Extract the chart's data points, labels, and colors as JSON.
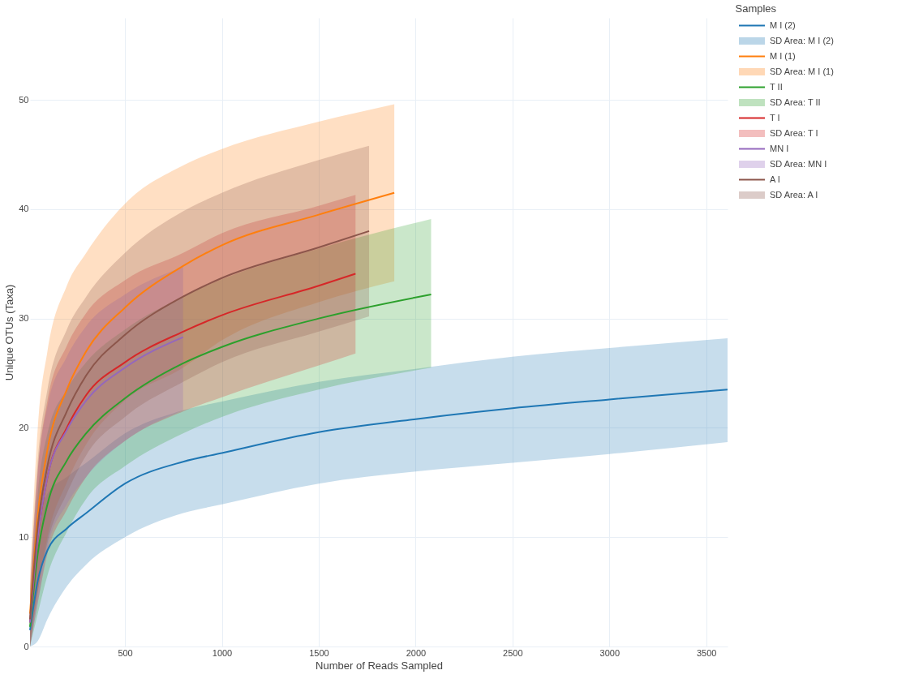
{
  "chart_data": {
    "type": "line",
    "xlabel": "Number of Reads Sampled",
    "ylabel": "Unique OTUs (Taxa)",
    "legend_title": "Samples",
    "legend": "top right",
    "grid": true,
    "xlim": [
      10,
      3610
    ],
    "xticks": [
      500,
      1000,
      1500,
      2000,
      2500,
      3000,
      3500
    ],
    "ylim": [
      0,
      57.5
    ],
    "yticks": [
      0,
      10,
      20,
      30,
      40,
      50
    ],
    "series": [
      {
        "name": "M I (2)",
        "type": "line",
        "color": "#1f77b4",
        "x": [
          10,
          50,
          100,
          200,
          300,
          500,
          800,
          1000,
          1500,
          2000,
          2500,
          3000,
          3610
        ],
        "values": [
          1.5,
          6,
          8.8,
          10.8,
          12.2,
          14.9,
          16.9,
          17.7,
          19.6,
          20.8,
          21.8,
          22.6,
          23.5
        ],
        "lower": [
          0,
          0.5,
          2.5,
          5.5,
          7.5,
          10,
          12.2,
          13,
          14.9,
          16,
          16.8,
          17.6,
          18.7
        ],
        "upper": [
          3,
          11,
          14,
          15.5,
          16.8,
          19.5,
          21.6,
          22.4,
          24.2,
          25.4,
          26.5,
          27.3,
          28.2
        ]
      },
      {
        "name": "SD Area: M I (2)",
        "type": "area",
        "color": "#1f77b4"
      },
      {
        "name": "M I (1)",
        "type": "line",
        "color": "#ff7f0e",
        "x": [
          10,
          50,
          100,
          200,
          300,
          500,
          800,
          1000,
          1500,
          1890
        ],
        "values": [
          3,
          12,
          18,
          23.5,
          27,
          31,
          34.8,
          36.7,
          39.5,
          41.5
        ],
        "lower": [
          0,
          5,
          10,
          15,
          18.5,
          22.5,
          25.5,
          28,
          31.5,
          33.4
        ],
        "upper": [
          6,
          20,
          27,
          33,
          36,
          40.5,
          44,
          45.5,
          48,
          49.6
        ]
      },
      {
        "name": "SD Area: M I (1)",
        "type": "area",
        "color": "#ff7f0e"
      },
      {
        "name": "T II",
        "type": "line",
        "color": "#2ca02c",
        "x": [
          10,
          50,
          100,
          200,
          300,
          500,
          800,
          1000,
          1500,
          2080
        ],
        "values": [
          1.8,
          8.5,
          13,
          17,
          19.5,
          22.7,
          25.9,
          27.4,
          30,
          32.2
        ],
        "lower": [
          0,
          3,
          6.5,
          10.5,
          13.5,
          16.5,
          19.5,
          21,
          23.5,
          25.5
        ],
        "upper": [
          3.5,
          14,
          19.5,
          23.5,
          26,
          29,
          32,
          33.6,
          36.4,
          39.1
        ]
      },
      {
        "name": "SD Area: T II",
        "type": "area",
        "color": "#2ca02c"
      },
      {
        "name": "T I",
        "type": "line",
        "color": "#d62728",
        "x": [
          10,
          50,
          100,
          200,
          300,
          500,
          800,
          1000,
          1500,
          1690
        ],
        "values": [
          2.2,
          10,
          15.5,
          20,
          23,
          26,
          28.8,
          30.3,
          33,
          34.1
        ],
        "lower": [
          0,
          4,
          8.5,
          12.5,
          15.5,
          18.8,
          21.5,
          22.8,
          25.7,
          26.8
        ],
        "upper": [
          4.5,
          16,
          22.5,
          27.5,
          30.5,
          33.5,
          36,
          37.8,
          40.3,
          41.3
        ]
      },
      {
        "name": "SD Area: T I",
        "type": "area",
        "color": "#d62728"
      },
      {
        "name": "MN I",
        "type": "line",
        "color": "#9467bd",
        "x": [
          10,
          50,
          100,
          200,
          300,
          500,
          800
        ],
        "values": [
          2.2,
          10,
          15.5,
          19.8,
          22.5,
          25.5,
          28.3
        ],
        "lower": [
          0,
          4,
          9,
          13,
          15.5,
          18.8,
          21.6
        ],
        "upper": [
          4.5,
          16,
          22,
          26.5,
          29.3,
          32.2,
          34.7
        ]
      },
      {
        "name": "SD Area: MN I",
        "type": "area",
        "color": "#9467bd"
      },
      {
        "name": "A I",
        "type": "line",
        "color": "#8c564b",
        "x": [
          10,
          50,
          100,
          200,
          300,
          500,
          800,
          1000,
          1500,
          1760
        ],
        "values": [
          2.5,
          11,
          16.5,
          21.5,
          24.8,
          28.5,
          32,
          33.7,
          36.5,
          38
        ],
        "lower": [
          0,
          5,
          9.5,
          14,
          17.5,
          21,
          24.2,
          26,
          28.8,
          30.2
        ],
        "upper": [
          5,
          17,
          23.5,
          29,
          32,
          36,
          39.8,
          41.5,
          44.5,
          45.8
        ]
      },
      {
        "name": "SD Area: A I",
        "type": "area",
        "color": "#8c564b"
      }
    ]
  }
}
